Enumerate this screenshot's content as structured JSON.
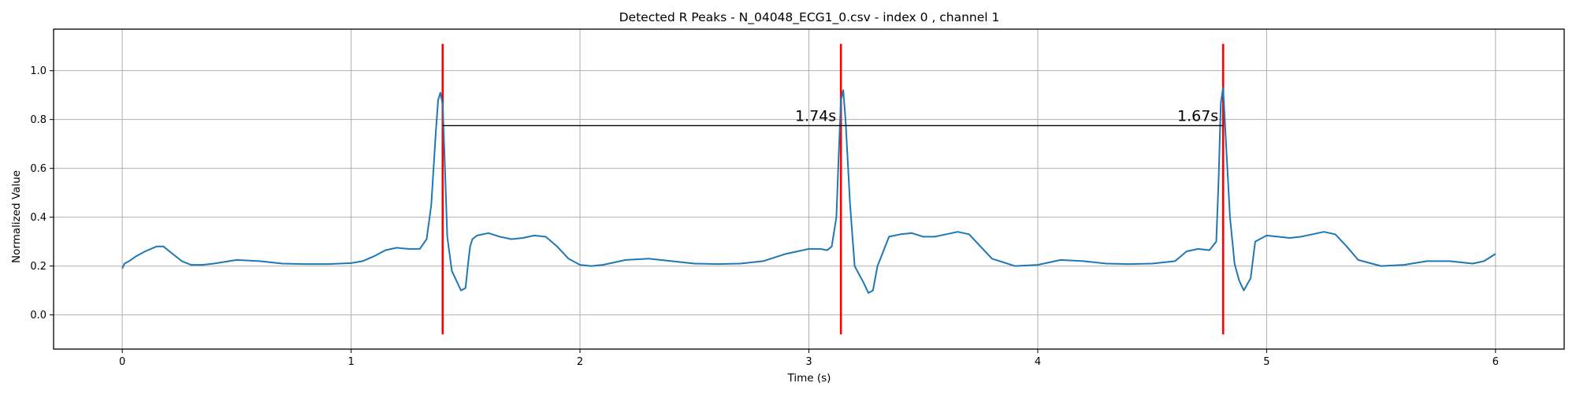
{
  "chart_data": {
    "type": "line",
    "title": "Detected R Peaks - N_04048_ECG1_0.csv - index 0 , channel 1",
    "xlabel": "Time (s)",
    "ylabel": "Normalized Value",
    "xlim": [
      -0.3,
      6.3
    ],
    "ylim": [
      -0.14,
      1.17
    ],
    "xticks": [
      0,
      1,
      2,
      3,
      4,
      5,
      6
    ],
    "yticks": [
      0.0,
      0.2,
      0.4,
      0.6,
      0.8,
      1.0
    ],
    "xtick_labels": [
      "0",
      "1",
      "2",
      "3",
      "4",
      "5",
      "6"
    ],
    "ytick_labels": [
      "0.0",
      "0.2",
      "0.4",
      "0.6",
      "0.8",
      "1.0"
    ],
    "grid": true,
    "colors": {
      "signal": "#1f77b4",
      "peaks": "#ff0000",
      "interval": "#000000"
    },
    "series": [
      {
        "x": [
          0.0,
          0.01,
          0.03,
          0.06,
          0.1,
          0.15,
          0.18,
          0.22,
          0.26,
          0.3,
          0.35,
          0.4,
          0.5,
          0.6,
          0.7,
          0.8,
          0.9,
          1.0,
          1.05,
          1.1,
          1.15,
          1.2,
          1.25,
          1.3,
          1.33,
          1.35,
          1.37,
          1.38,
          1.39,
          1.4,
          1.41,
          1.42,
          1.44,
          1.46,
          1.48,
          1.5,
          1.51,
          1.52,
          1.53,
          1.55,
          1.6,
          1.65,
          1.7,
          1.75,
          1.8,
          1.85,
          1.9,
          1.95,
          2.0,
          2.05,
          2.1,
          2.2,
          2.3,
          2.4,
          2.5,
          2.6,
          2.7,
          2.8,
          2.9,
          3.0,
          3.05,
          3.08,
          3.1,
          3.12,
          3.13,
          3.14,
          3.15,
          3.16,
          3.18,
          3.2,
          3.24,
          3.26,
          3.28,
          3.3,
          3.35,
          3.4,
          3.45,
          3.5,
          3.55,
          3.6,
          3.65,
          3.7,
          3.75,
          3.8,
          3.9,
          4.0,
          4.1,
          4.2,
          4.3,
          4.4,
          4.5,
          4.6,
          4.65,
          4.7,
          4.75,
          4.78,
          4.79,
          4.8,
          4.81,
          4.82,
          4.84,
          4.86,
          4.88,
          4.9,
          4.93,
          4.95,
          5.0,
          5.05,
          5.1,
          5.15,
          5.2,
          5.25,
          5.3,
          5.35,
          5.4,
          5.5,
          5.6,
          5.7,
          5.8,
          5.9,
          5.95,
          6.0
        ],
        "y": [
          0.19,
          0.21,
          0.22,
          0.24,
          0.26,
          0.28,
          0.28,
          0.25,
          0.22,
          0.205,
          0.205,
          0.21,
          0.225,
          0.22,
          0.21,
          0.208,
          0.208,
          0.212,
          0.22,
          0.24,
          0.265,
          0.275,
          0.27,
          0.27,
          0.31,
          0.45,
          0.75,
          0.88,
          0.91,
          0.86,
          0.6,
          0.32,
          0.18,
          0.14,
          0.1,
          0.11,
          0.2,
          0.28,
          0.31,
          0.325,
          0.335,
          0.32,
          0.31,
          0.315,
          0.325,
          0.32,
          0.28,
          0.23,
          0.205,
          0.2,
          0.205,
          0.225,
          0.23,
          0.22,
          0.21,
          0.208,
          0.21,
          0.22,
          0.25,
          0.27,
          0.27,
          0.265,
          0.28,
          0.4,
          0.65,
          0.88,
          0.92,
          0.8,
          0.45,
          0.2,
          0.13,
          0.09,
          0.1,
          0.2,
          0.32,
          0.33,
          0.335,
          0.32,
          0.32,
          0.33,
          0.34,
          0.33,
          0.28,
          0.23,
          0.2,
          0.205,
          0.225,
          0.22,
          0.21,
          0.208,
          0.21,
          0.22,
          0.26,
          0.27,
          0.265,
          0.3,
          0.55,
          0.87,
          0.93,
          0.75,
          0.4,
          0.21,
          0.14,
          0.1,
          0.15,
          0.3,
          0.325,
          0.32,
          0.315,
          0.32,
          0.33,
          0.34,
          0.33,
          0.28,
          0.225,
          0.2,
          0.205,
          0.22,
          0.22,
          0.21,
          0.22,
          0.25
        ]
      }
    ],
    "r_peaks": [
      1.4,
      3.14,
      4.81
    ],
    "peak_line_range": [
      -0.08,
      1.11
    ],
    "interval_line_y": 0.775,
    "annotations": [
      {
        "text": "1.74s",
        "x": 3.14,
        "y": 0.775
      },
      {
        "text": "1.67s",
        "x": 4.81,
        "y": 0.775
      }
    ]
  }
}
